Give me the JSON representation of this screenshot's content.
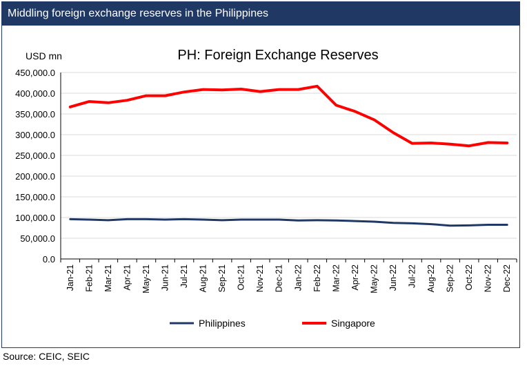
{
  "header": {
    "title": "Middling foreign exchange reserves in the Philippines"
  },
  "source": "Source: CEIC, SEIC",
  "colors": {
    "philippines": "#1f3864",
    "singapore": "#ff0000",
    "header_bg": "#1f3864"
  },
  "chart_data": {
    "type": "line",
    "title": "PH: Foreign Exchange Reserves",
    "ylabel": "USD mn",
    "xlabel": "",
    "ylim": [
      0,
      450000
    ],
    "yticks": [
      0,
      50000,
      100000,
      150000,
      200000,
      250000,
      300000,
      350000,
      400000,
      450000
    ],
    "ytick_labels": [
      "0.0",
      "50,000.0",
      "100,000.0",
      "150,000.0",
      "200,000.0",
      "250,000.0",
      "300,000.0",
      "350,000.0",
      "400,000.0",
      "450,000.0"
    ],
    "grid": true,
    "legend": "bottom",
    "categories": [
      "Jan-21",
      "Feb-21",
      "Mar-21",
      "Apr-21",
      "May-21",
      "Jun-21",
      "Jul-21",
      "Aug-21",
      "Sep-21",
      "Oct-21",
      "Nov-21",
      "Dec-21",
      "Jan-22",
      "Feb-22",
      "Mar-22",
      "Apr-22",
      "May-22",
      "Jun-22",
      "Jul-22",
      "Aug-22",
      "Sep-22",
      "Oct-22",
      "Nov-22",
      "Dec-22"
    ],
    "series": [
      {
        "name": "Philippines",
        "color": "#1f3864",
        "values": [
          96000,
          95000,
          93500,
          96000,
          96000,
          95000,
          96000,
          95000,
          93500,
          95000,
          95000,
          95000,
          93000,
          93500,
          93000,
          91500,
          90000,
          87000,
          86000,
          84000,
          80500,
          81000,
          82500,
          82500
        ]
      },
      {
        "name": "Singapore",
        "color": "#ff0000",
        "values": [
          367000,
          380000,
          377000,
          383000,
          394000,
          394000,
          403000,
          409000,
          408000,
          410000,
          404000,
          409000,
          409000,
          417000,
          371000,
          356000,
          336000,
          305000,
          279000,
          280000,
          277000,
          273000,
          281000,
          280000
        ]
      }
    ]
  }
}
